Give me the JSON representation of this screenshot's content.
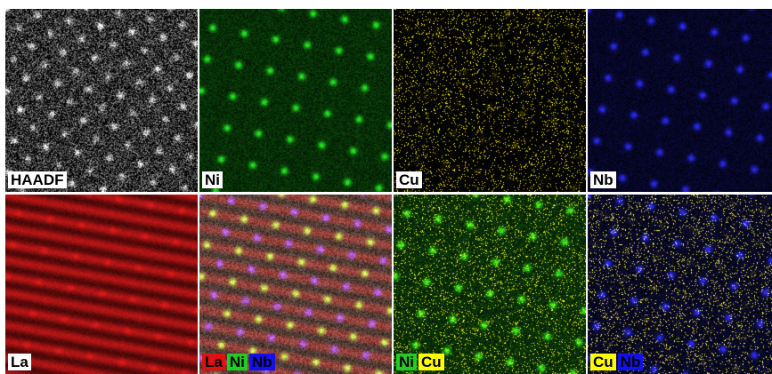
{
  "panels": [
    {
      "id": "haadf",
      "mode": "haadf",
      "channels": [
        "white"
      ],
      "labels": [
        {
          "text": "HAADF",
          "bg": "#ffffff",
          "fg": "#000000"
        }
      ]
    },
    {
      "id": "ni",
      "mode": "single",
      "channels": [
        "green"
      ],
      "labels": [
        {
          "text": "Ni",
          "bg": "#ffffff",
          "fg": "#000000"
        }
      ]
    },
    {
      "id": "cu",
      "mode": "single",
      "channels": [
        "yellow"
      ],
      "labels": [
        {
          "text": "Cu",
          "bg": "#ffffff",
          "fg": "#000000"
        }
      ]
    },
    {
      "id": "nb",
      "mode": "single",
      "channels": [
        "blue"
      ],
      "labels": [
        {
          "text": "Nb",
          "bg": "#ffffff",
          "fg": "#000000"
        }
      ]
    },
    {
      "id": "la",
      "mode": "single",
      "channels": [
        "red"
      ],
      "labels": [
        {
          "text": "La",
          "bg": "#ffffff",
          "fg": "#000000"
        }
      ]
    },
    {
      "id": "la-ni-nb",
      "mode": "overlay",
      "channels": [
        "red",
        "green",
        "blue"
      ],
      "labels": [
        {
          "text": "La",
          "bg": "#dd1111",
          "fg": "#000000"
        },
        {
          "text": "Ni",
          "bg": "#22cc22",
          "fg": "#000000"
        },
        {
          "text": "Nb",
          "bg": "#1111ee",
          "fg": "#000000"
        }
      ]
    },
    {
      "id": "ni-cu",
      "mode": "overlay",
      "channels": [
        "green",
        "yellow"
      ],
      "labels": [
        {
          "text": "Ni",
          "bg": "#22cc22",
          "fg": "#000000"
        },
        {
          "text": "Cu",
          "bg": "#ffff00",
          "fg": "#000000"
        }
      ]
    },
    {
      "id": "cu-nb",
      "mode": "overlay",
      "channels": [
        "yellow",
        "blue"
      ],
      "labels": [
        {
          "text": "Cu",
          "bg": "#ffff00",
          "fg": "#000000"
        },
        {
          "text": "Nb",
          "bg": "#1111ee",
          "fg": "#000000"
        }
      ]
    }
  ],
  "colors": {
    "white": "#ffffff",
    "green": "#22e622",
    "yellow": "#ffee00",
    "blue": "#2a2aff",
    "red": "#e01a1a",
    "panel_bg": "#000000"
  }
}
